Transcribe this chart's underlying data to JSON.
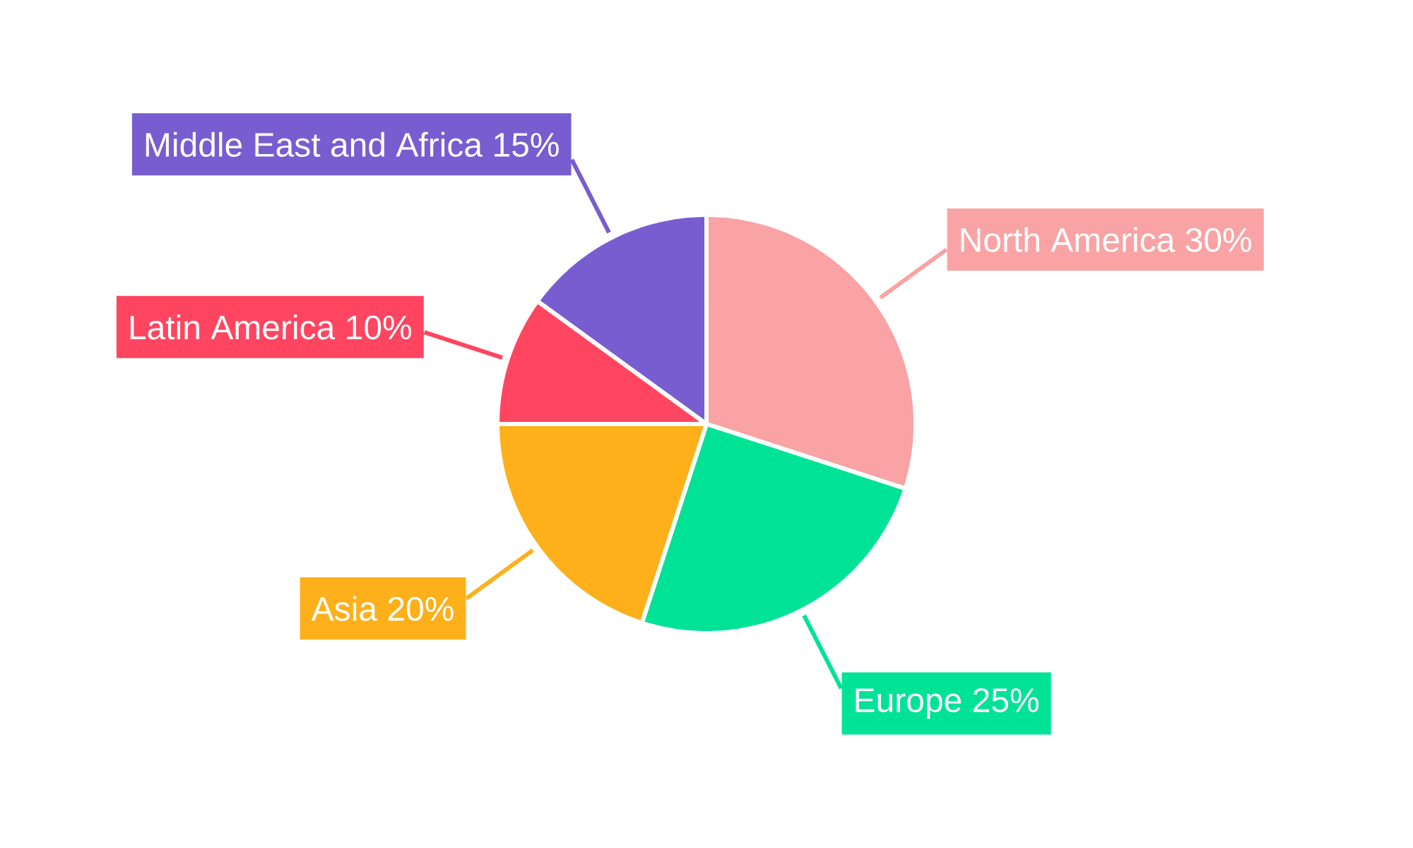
{
  "chart_data": {
    "type": "pie",
    "categories": [
      "North America",
      "Europe",
      "Asia",
      "Latin America",
      "Middle East and Africa"
    ],
    "values": [
      30,
      25,
      20,
      10,
      15
    ],
    "colors": [
      "#f9a3a4",
      "#00e396",
      "#fdb01a",
      "#ff4560",
      "#775dd0"
    ],
    "value_labels": [
      "30%",
      "25%",
      "20%",
      "10%",
      "15%"
    ]
  }
}
